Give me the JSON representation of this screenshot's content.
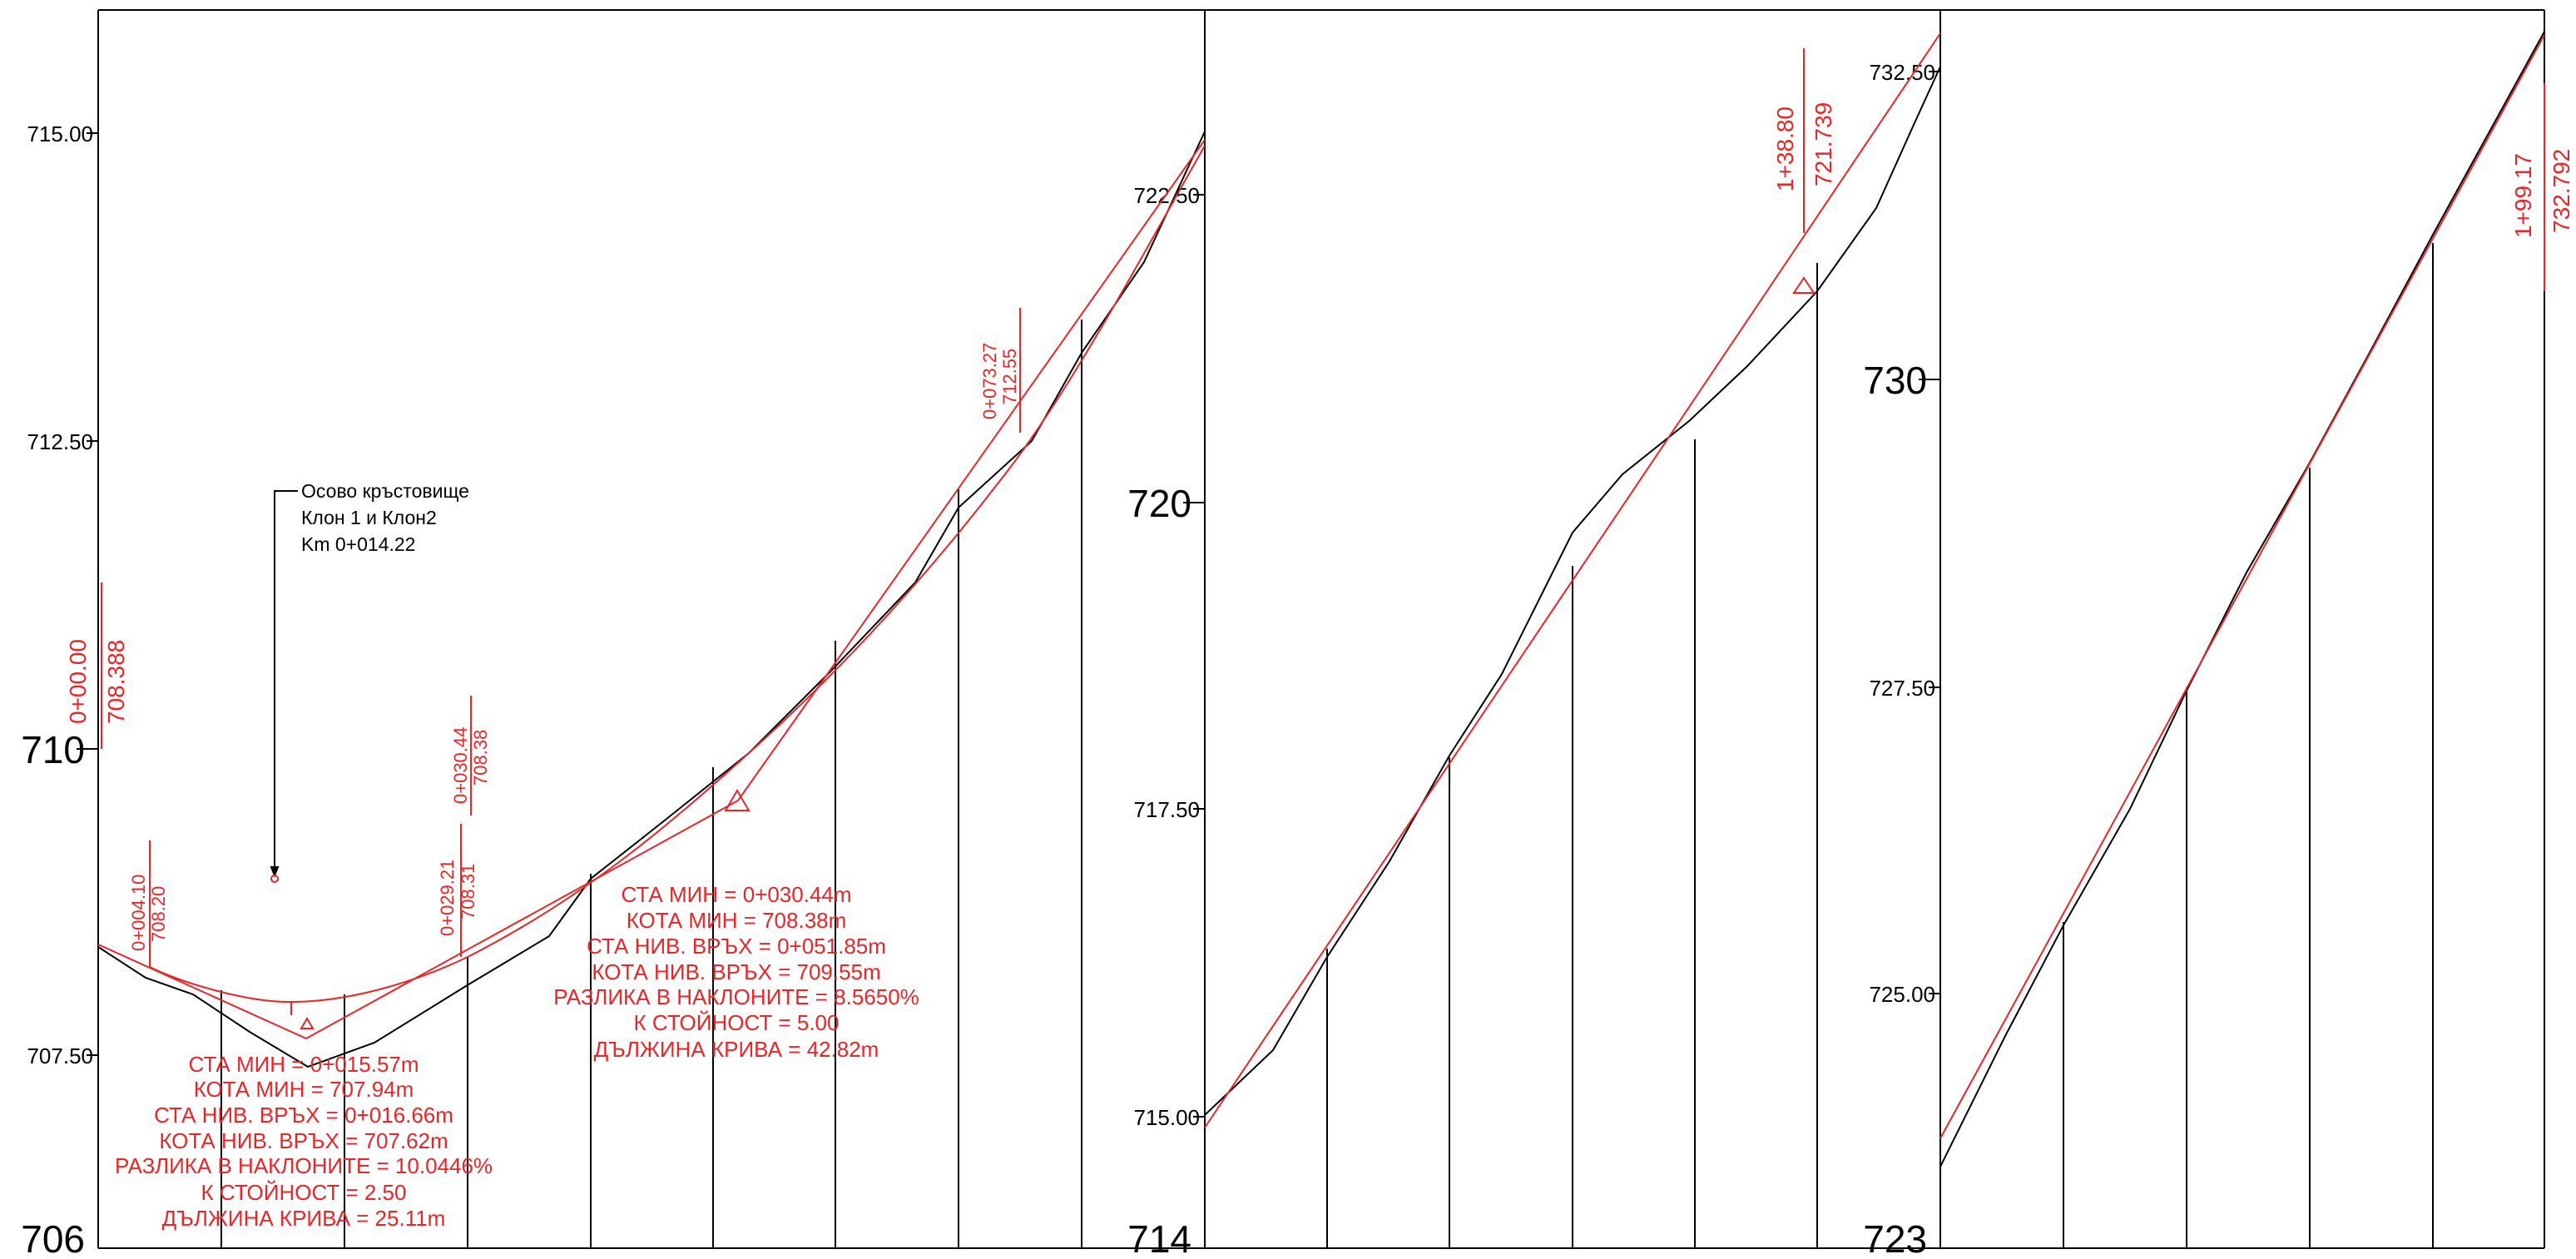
{
  "title": "",
  "panels": [
    {
      "id": "p1",
      "ylabels": [
        "715.00",
        "712.50",
        "710",
        "707.50",
        "706"
      ],
      "stations": [
        {
          "a": "0+00.00",
          "b": "708.388"
        },
        {
          "a": "0+004.10",
          "b": "708.20"
        },
        {
          "a": "0+029.21",
          "b": "708.31"
        },
        {
          "a": "0+030.44",
          "b": "708.38"
        },
        {
          "a": "0+073.27",
          "b": "712.55"
        }
      ],
      "curve1": [
        "СТА МИН = 0+015.57m",
        "КОТА МИН = 707.94m",
        "СТА НИВ. ВРЪХ = 0+016.66m",
        "КОТА НИВ. ВРЪХ = 707.62m",
        "РАЗЛИКА В НАКЛОНИТЕ = 10.0446%",
        "К СТОЙНОСТ = 2.50",
        "ДЪЛЖИНА КРИВА = 25.11m"
      ],
      "curve2": [
        "СТА МИН = 0+030.44m",
        "КОТА МИН = 708.38m",
        "СТА НИВ. ВРЪХ = 0+051.85m",
        "КОТА НИВ. ВРЪХ = 709.55m",
        "РАЗЛИКА В НАКЛОНИТЕ = 8.5650%",
        "К СТОЙНОСТ = 5.00",
        "ДЪЛЖИНА КРИВА = 42.82m"
      ],
      "note": [
        "Осово кръстовище",
        "Клон 1 и Клон2",
        "Km 0+014.22"
      ]
    },
    {
      "id": "p2",
      "ylabels": [
        "722.50",
        "720",
        "717.50",
        "715.00",
        "714"
      ],
      "stations": [
        {
          "a": "1+38.80",
          "b": "721.739"
        }
      ]
    },
    {
      "id": "p3",
      "ylabels": [
        "732.50",
        "730",
        "727.50",
        "725.00",
        "723"
      ],
      "stations": [
        {
          "a": "1+99.17",
          "b": "732.792"
        }
      ]
    }
  ],
  "colors": {
    "design": "#e8262a",
    "ground": "#000000",
    "frame": "#000000"
  }
}
